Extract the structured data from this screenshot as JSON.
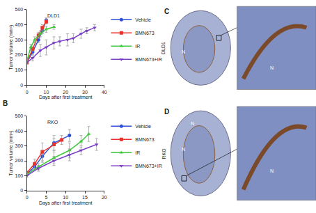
{
  "chart_data": [
    {
      "type": "line",
      "panel": "A",
      "title": "DLD1",
      "x_label": "Days after first treatment",
      "y_label": "Tumor volume (mm³)",
      "xlim": [
        0,
        40
      ],
      "xticks": [
        0,
        10,
        20,
        30,
        40
      ],
      "ylim": [
        0,
        500
      ],
      "yticks": [
        0,
        100,
        200,
        300,
        400,
        500
      ],
      "grid": false,
      "legend": "right",
      "series": [
        {
          "name": "Vehicle",
          "color": "#2e4fd6",
          "marker": "circle",
          "x": [
            0,
            3,
            6,
            8,
            10
          ],
          "values": [
            150,
            220,
            300,
            360,
            430
          ],
          "errors": [
            10,
            15,
            20,
            20,
            15
          ]
        },
        {
          "name": "BMN673",
          "color": "#e8322a",
          "marker": "square",
          "x": [
            0,
            3,
            6,
            8,
            10
          ],
          "values": [
            150,
            240,
            330,
            380,
            420
          ],
          "errors": [
            10,
            15,
            20,
            20,
            15
          ]
        },
        {
          "name": "IR",
          "color": "#3fc93a",
          "marker": "triangle-up",
          "x": [
            0,
            2,
            4,
            7,
            10,
            14
          ],
          "values": [
            160,
            250,
            300,
            340,
            370,
            385
          ],
          "errors": [
            10,
            20,
            20,
            20,
            20,
            15
          ]
        },
        {
          "name": "BMN673+IR",
          "color": "#7b3fc6",
          "marker": "triangle-down",
          "x": [
            0,
            3,
            7,
            10,
            14,
            17,
            21,
            24,
            28,
            31,
            35
          ],
          "values": [
            150,
            180,
            230,
            250,
            280,
            290,
            300,
            310,
            340,
            360,
            380
          ],
          "errors": [
            10,
            20,
            40,
            50,
            40,
            30,
            40,
            30,
            30,
            20,
            20
          ]
        }
      ]
    },
    {
      "type": "line",
      "panel": "B",
      "title": "RKO",
      "x_label": "Days after first treatment",
      "y_label": "Tumor volume (mm³)",
      "xlim": [
        0,
        20
      ],
      "xticks": [
        0,
        5,
        10,
        15,
        20
      ],
      "ylim": [
        0,
        500
      ],
      "yticks": [
        0,
        100,
        200,
        300,
        400,
        500
      ],
      "grid": false,
      "legend": "right",
      "series": [
        {
          "name": "Vehicle",
          "color": "#2e4fd6",
          "marker": "circle",
          "x": [
            0,
            2,
            4,
            7,
            11
          ],
          "values": [
            110,
            160,
            230,
            320,
            370
          ],
          "errors": [
            10,
            20,
            40,
            50,
            40
          ]
        },
        {
          "name": "BMN673",
          "color": "#e8322a",
          "marker": "square",
          "x": [
            0,
            2,
            4,
            7,
            9
          ],
          "values": [
            120,
            180,
            260,
            310,
            340
          ],
          "errors": [
            10,
            30,
            60,
            40,
            30
          ]
        },
        {
          "name": "IR",
          "color": "#3fc93a",
          "marker": "triangle-up",
          "x": [
            0,
            3,
            7,
            11,
            14,
            16
          ],
          "values": [
            110,
            160,
            220,
            270,
            330,
            380
          ],
          "errors": [
            10,
            20,
            40,
            50,
            40,
            50
          ]
        },
        {
          "name": "BMN673+IR",
          "color": "#7b3fc6",
          "marker": "triangle-down",
          "x": [
            0,
            3,
            7,
            11,
            14,
            18
          ],
          "values": [
            100,
            150,
            200,
            240,
            270,
            310
          ],
          "errors": [
            10,
            20,
            30,
            40,
            30,
            40
          ]
        }
      ]
    }
  ],
  "image_panels": [
    {
      "panel": "C",
      "title": "DLD1",
      "labels": [
        "N",
        "N"
      ]
    },
    {
      "panel": "D",
      "title": "RKO",
      "labels": [
        "N",
        "N",
        "N"
      ]
    }
  ]
}
